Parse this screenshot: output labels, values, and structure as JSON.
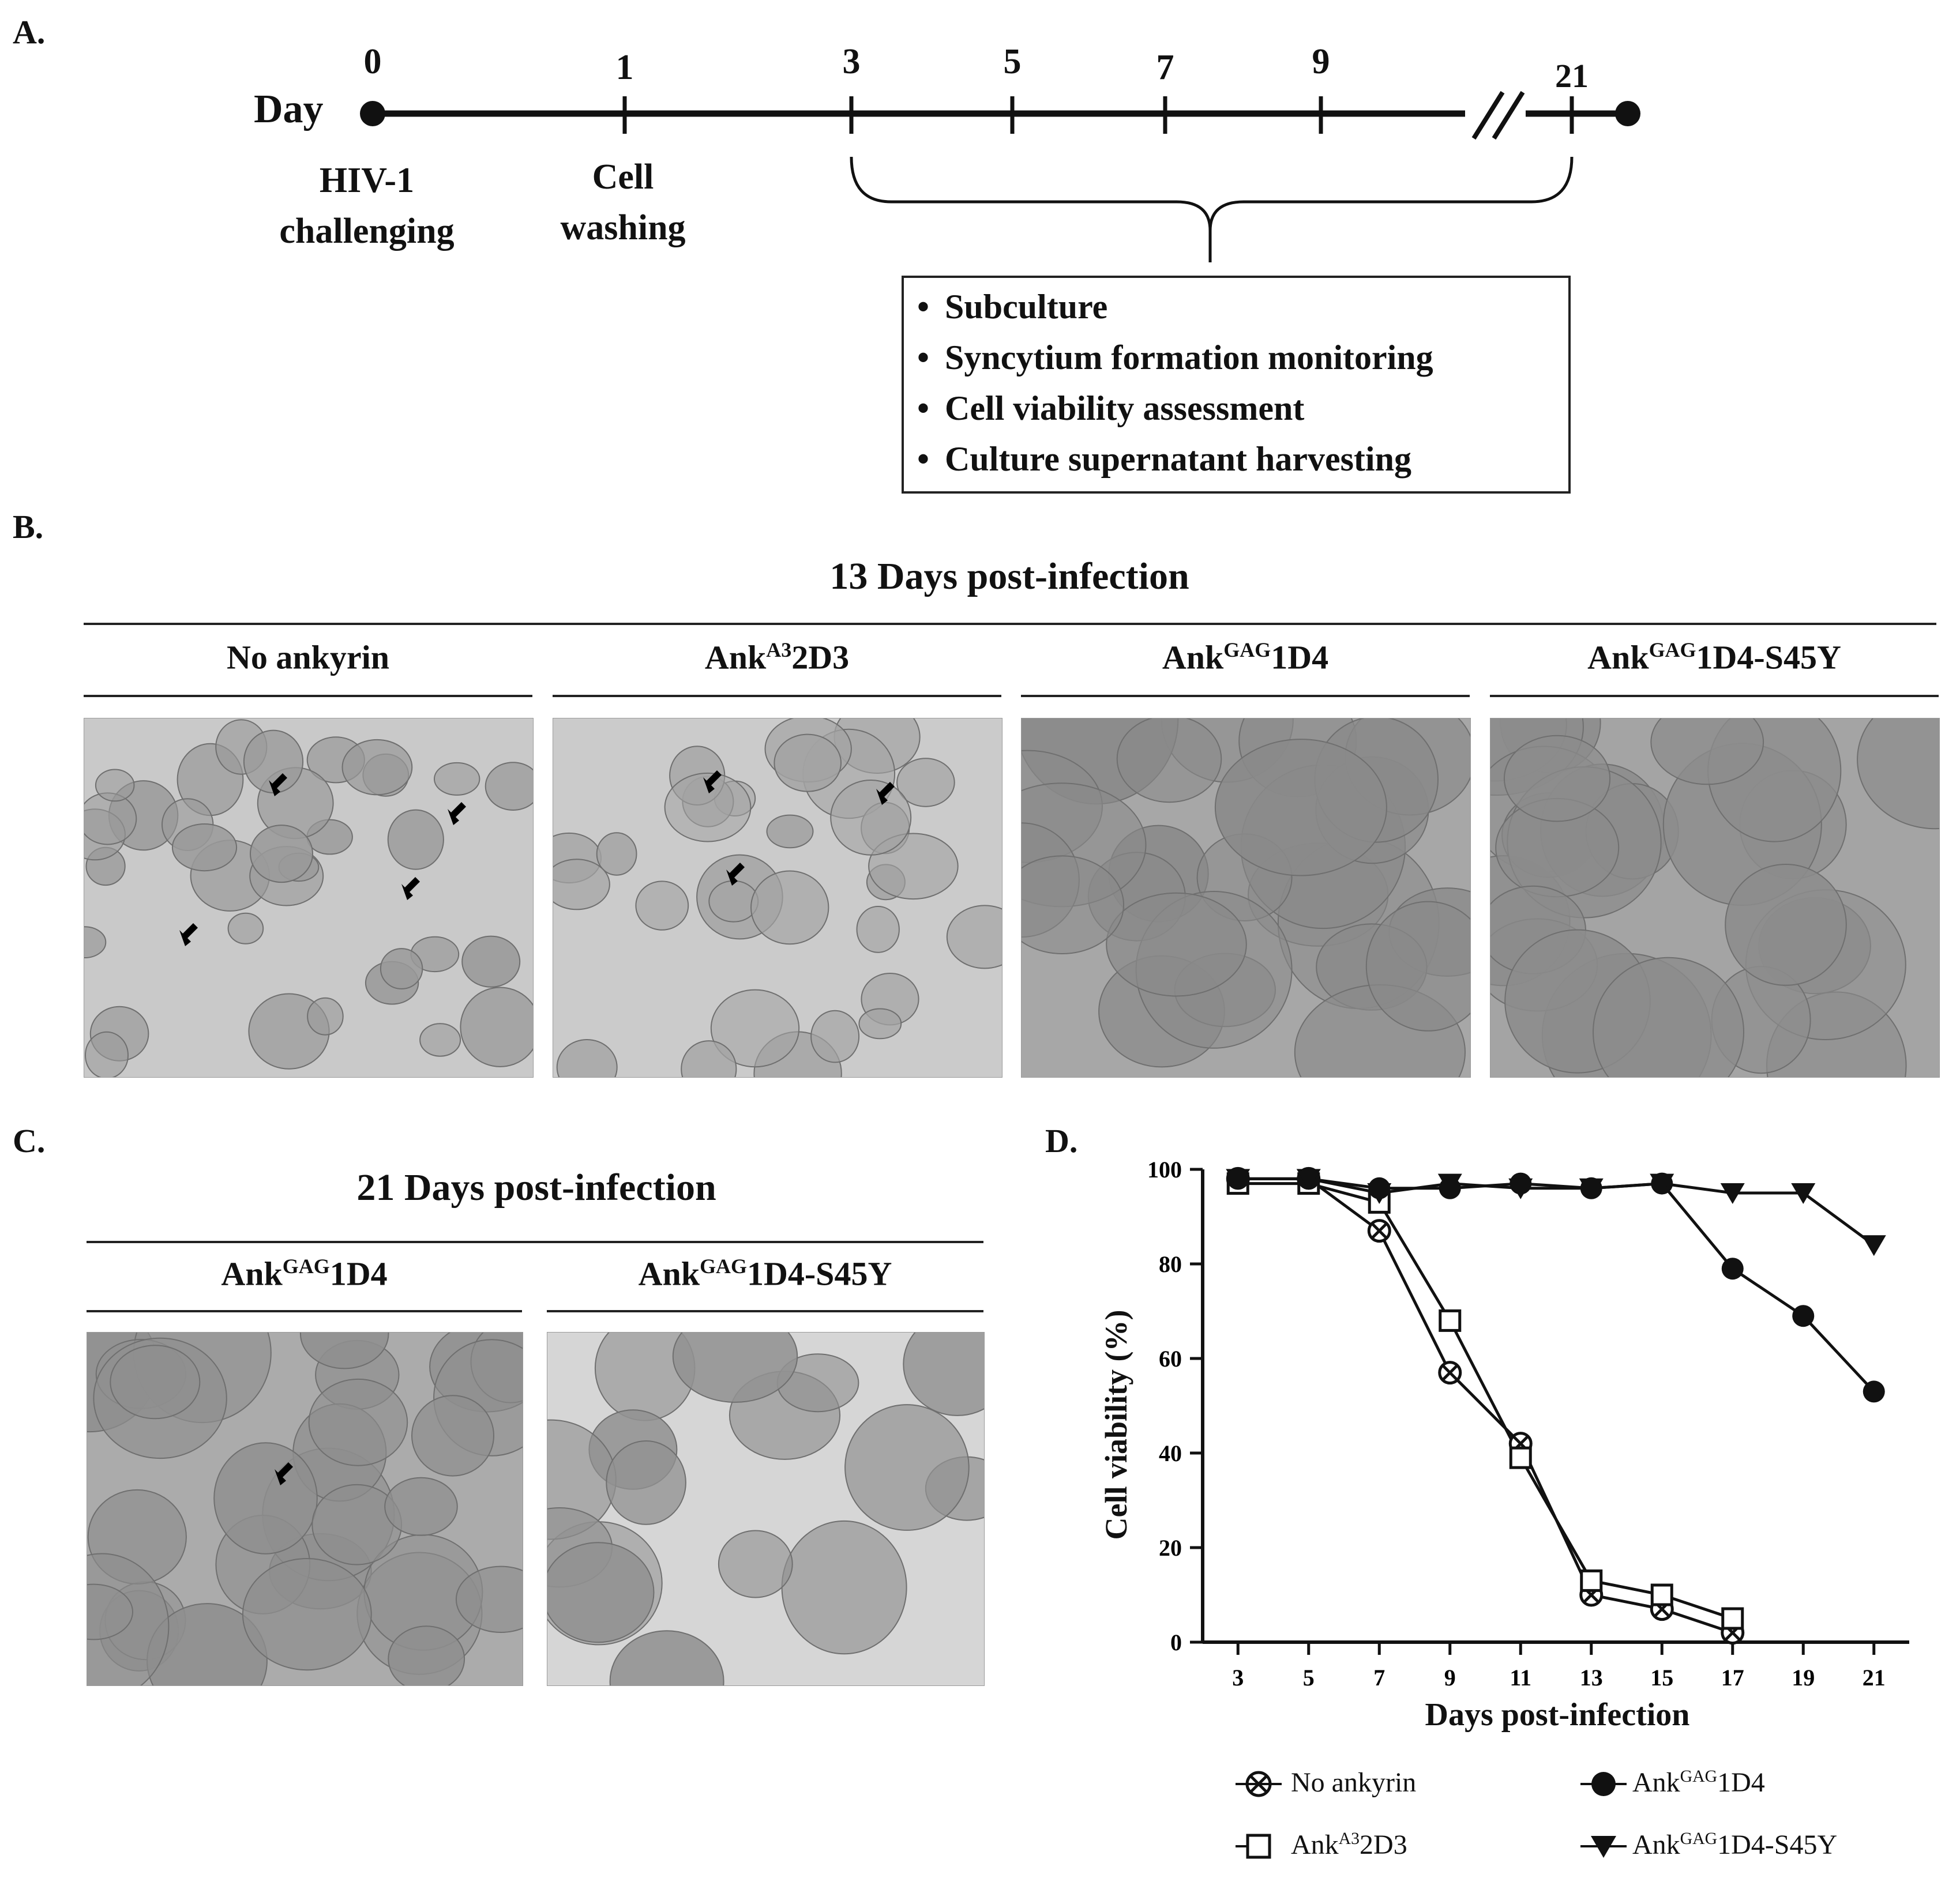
{
  "panel_a": {
    "label": "A.",
    "axis_word": "Day",
    "days": [
      "0",
      "1",
      "3",
      "5",
      "7",
      "9",
      "21"
    ],
    "events": [
      {
        "day": "0",
        "line1": "HIV-1",
        "line2": "challenging"
      },
      {
        "day": "1",
        "line1": "Cell",
        "line2": "washing"
      }
    ],
    "steps": [
      "Subculture",
      "Syncytium formation monitoring",
      "Cell viability assessment",
      "Culture supernatant harvesting"
    ],
    "bullet": "•"
  },
  "panel_b": {
    "label": "B.",
    "title": "13 Days post-infection",
    "columns": [
      {
        "base": "No ankyrin",
        "sup": "",
        "suffix": ""
      },
      {
        "base": "Ank",
        "sup": "A3",
        "suffix": "2D3"
      },
      {
        "base": "Ank",
        "sup": "GAG",
        "suffix": "1D4"
      },
      {
        "base": "Ank",
        "sup": "GAG",
        "suffix": "1D4-S45Y"
      }
    ]
  },
  "panel_c": {
    "label": "C.",
    "title": "21 Days post-infection",
    "columns": [
      {
        "base": "Ank",
        "sup": "GAG",
        "suffix": "1D4"
      },
      {
        "base": "Ank",
        "sup": "GAG",
        "suffix": "1D4-S45Y"
      }
    ]
  },
  "panel_d": {
    "label": "D."
  },
  "chart_data": {
    "type": "line",
    "title": "",
    "xlabel": "Days post-infection",
    "ylabel": "Cell viability (%)",
    "xlim": [
      2,
      22
    ],
    "ylim": [
      0,
      100
    ],
    "x_ticks": [
      3,
      5,
      7,
      9,
      11,
      13,
      15,
      17,
      19,
      21
    ],
    "y_ticks": [
      0,
      20,
      40,
      60,
      80,
      100
    ],
    "grid": false,
    "legend_position": "bottom",
    "series": [
      {
        "name_base": "No ankyrin",
        "name_sup": "",
        "name_suffix": "",
        "marker": "circle-x",
        "x": [
          3,
          5,
          7,
          9,
          11,
          13,
          15,
          17
        ],
        "y": [
          98,
          98,
          87,
          57,
          42,
          10,
          7,
          2
        ]
      },
      {
        "name_base": "Ank",
        "name_sup": "A3",
        "name_suffix": "2D3",
        "marker": "open-square",
        "x": [
          3,
          5,
          7,
          9,
          11,
          13,
          15,
          17
        ],
        "y": [
          97,
          97,
          93,
          68,
          39,
          13,
          10,
          5
        ]
      },
      {
        "name_base": "Ank",
        "name_sup": "GAG",
        "name_suffix": "1D4",
        "marker": "filled-circle",
        "x": [
          3,
          5,
          7,
          9,
          11,
          13,
          15,
          17,
          19,
          21
        ],
        "y": [
          98,
          98,
          96,
          96,
          97,
          96,
          97,
          79,
          69,
          53
        ]
      },
      {
        "name_base": "Ank",
        "name_sup": "GAG",
        "name_suffix": "1D4-S45Y",
        "marker": "filled-triangle-down",
        "x": [
          3,
          5,
          7,
          9,
          11,
          13,
          15,
          17,
          19,
          21
        ],
        "y": [
          98,
          98,
          95,
          97,
          96,
          96,
          97,
          95,
          95,
          84
        ]
      }
    ]
  }
}
